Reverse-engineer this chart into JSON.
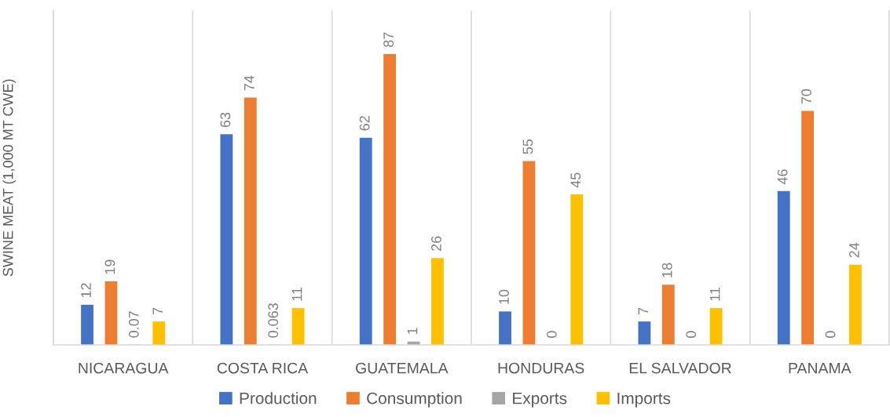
{
  "chart_data": {
    "type": "bar",
    "ylabel": "SWINE MEAT (1,000 MT CWE)",
    "categories": [
      "NICARAGUA",
      "COSTA RICA",
      "GUATEMALA",
      "HONDURAS",
      "EL SALVADOR",
      "PANAMA"
    ],
    "series": [
      {
        "name": "Production",
        "color": "#4472c4",
        "values": [
          12,
          63,
          62,
          10,
          7,
          46
        ]
      },
      {
        "name": "Consumption",
        "color": "#ed7d31",
        "values": [
          19,
          74,
          87,
          55,
          18,
          70
        ]
      },
      {
        "name": "Exports",
        "color": "#a5a5a5",
        "values": [
          0.07,
          0.063,
          1,
          0,
          0,
          0
        ]
      },
      {
        "name": "Imports",
        "color": "#ffc000",
        "values": [
          7,
          11,
          26,
          45,
          11,
          24
        ]
      }
    ],
    "ylim": [
      0,
      100
    ],
    "data_labels": true,
    "grid": "x",
    "legend": "bottom",
    "tick_labels": "x"
  }
}
